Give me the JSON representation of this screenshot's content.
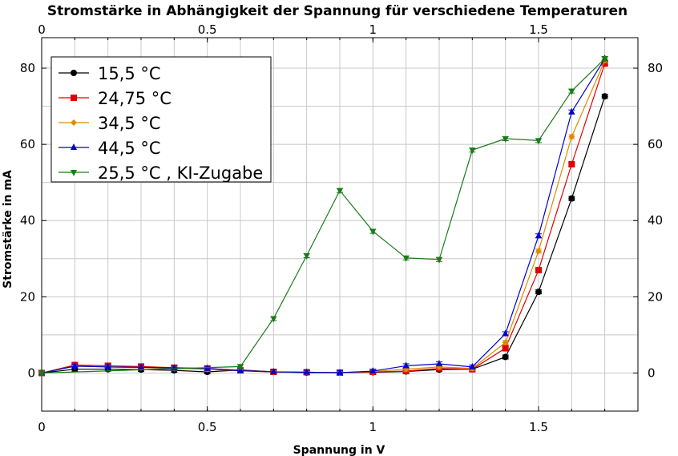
{
  "chart_data": {
    "type": "line",
    "title": "Stromstärke in Abhängigkeit der Spannung für verschiedene Temperaturen",
    "xlabel": "Spannung in V",
    "ylabel": "Stromstärke in mA",
    "xlim": [
      0,
      1.8
    ],
    "ylim": [
      -10,
      88
    ],
    "xticks": [
      0,
      0.5,
      1,
      1.5
    ],
    "xtick_labels": [
      "0",
      "0.5",
      "1",
      "1.5"
    ],
    "yticks": [
      0,
      20,
      40,
      60,
      80
    ],
    "ytick_labels": [
      "0",
      "20",
      "40",
      "60",
      "80"
    ],
    "grid": true,
    "legend_position": "top-left",
    "series": [
      {
        "name": "15,5 °C",
        "color": "#000000",
        "marker": "circle",
        "x": [
          0,
          0.1,
          0.2,
          0.3,
          0.4,
          0.5,
          0.6,
          0.7,
          0.8,
          0.9,
          1.0,
          1.1,
          1.2,
          1.3,
          1.4,
          1.5,
          1.6,
          1.7
        ],
        "y": [
          0,
          1.0,
          1.0,
          0.9,
          0.7,
          0.3,
          0.8,
          0.3,
          0.1,
          0.1,
          0.2,
          0.4,
          0.9,
          1.0,
          4.2,
          21.3,
          45.8,
          72.6
        ]
      },
      {
        "name": "24,75 °C",
        "color": "#e00000",
        "marker": "square",
        "x": [
          0,
          0.1,
          0.2,
          0.3,
          0.4,
          0.5,
          0.6,
          0.7,
          0.8,
          0.9,
          1.0,
          1.1,
          1.2,
          1.3,
          1.4,
          1.5,
          1.6,
          1.7
        ],
        "y": [
          0,
          2.1,
          1.9,
          1.7,
          1.4,
          1.2,
          0.7,
          0.3,
          0.2,
          0.1,
          0.3,
          0.5,
          1.2,
          1.0,
          6.5,
          27.0,
          54.8,
          81.2
        ]
      },
      {
        "name": "34,5 °C",
        "color": "#e08a00",
        "marker": "diamond",
        "x": [
          0,
          0.1,
          0.2,
          0.3,
          0.4,
          0.5,
          0.6,
          0.7,
          0.8,
          0.9,
          1.0,
          1.1,
          1.2,
          1.3,
          1.4,
          1.5,
          1.6,
          1.7
        ],
        "y": [
          0,
          1.8,
          1.6,
          1.4,
          1.2,
          1.0,
          0.6,
          0.3,
          0.2,
          0.1,
          0.4,
          1.0,
          1.6,
          1.2,
          8.0,
          32.0,
          62.0,
          82.0
        ]
      },
      {
        "name": "44,5 °C",
        "color": "#0000d0",
        "marker": "triangle-up",
        "x": [
          0,
          0.1,
          0.2,
          0.3,
          0.4,
          0.5,
          0.6,
          0.7,
          0.8,
          0.9,
          1.0,
          1.1,
          1.2,
          1.3,
          1.4,
          1.5,
          1.6,
          1.7
        ],
        "y": [
          0,
          1.8,
          1.6,
          1.5,
          1.3,
          1.2,
          0.6,
          0.3,
          0.2,
          0.1,
          0.5,
          1.9,
          2.4,
          1.6,
          10.3,
          36.0,
          68.5,
          82.5
        ]
      },
      {
        "name": "25,5 °C , KI-Zugabe",
        "color": "#1a7a1a",
        "marker": "triangle-down",
        "x": [
          0,
          0.6,
          0.7,
          0.8,
          0.9,
          1.0,
          1.1,
          1.2,
          1.3,
          1.4,
          1.5,
          1.6,
          1.7
        ],
        "y": [
          0,
          1.7,
          14.3,
          30.8,
          47.9,
          37.2,
          30.2,
          29.8,
          58.5,
          61.5,
          61.0,
          74.0,
          82.5
        ]
      }
    ]
  }
}
